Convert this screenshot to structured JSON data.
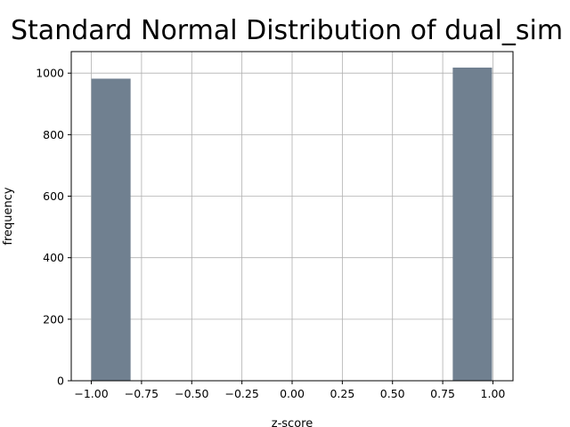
{
  "chart_data": {
    "type": "bar",
    "title": "Standard Normal Distribution of dual_sim",
    "xlabel": "z-score",
    "ylabel": "frequency",
    "xlim": [
      -1.1,
      1.1
    ],
    "ylim": [
      0,
      1070
    ],
    "xticks": [
      -1.0,
      -0.75,
      -0.5,
      -0.25,
      0.0,
      0.25,
      0.5,
      0.75,
      1.0
    ],
    "xtick_labels": [
      "−1.00",
      "−0.75",
      "−0.50",
      "−0.25",
      "0.00",
      "0.25",
      "0.50",
      "0.75",
      "1.00"
    ],
    "yticks": [
      0,
      200,
      400,
      600,
      800,
      1000
    ],
    "ytick_labels": [
      "0",
      "200",
      "400",
      "600",
      "800",
      "1000"
    ],
    "grid": true,
    "bar_color": "#708090",
    "bins": [
      {
        "x0": -1.0,
        "x1": -0.8,
        "value": 982
      },
      {
        "x0": -0.8,
        "x1": -0.6,
        "value": 0
      },
      {
        "x0": -0.6,
        "x1": -0.4,
        "value": 0
      },
      {
        "x0": -0.4,
        "x1": -0.2,
        "value": 0
      },
      {
        "x0": -0.2,
        "x1": 0.0,
        "value": 0
      },
      {
        "x0": 0.0,
        "x1": 0.2,
        "value": 0
      },
      {
        "x0": 0.2,
        "x1": 0.4,
        "value": 0
      },
      {
        "x0": 0.4,
        "x1": 0.6,
        "value": 0
      },
      {
        "x0": 0.6,
        "x1": 0.8,
        "value": 0
      },
      {
        "x0": 0.8,
        "x1": 1.0,
        "value": 1018
      }
    ]
  }
}
